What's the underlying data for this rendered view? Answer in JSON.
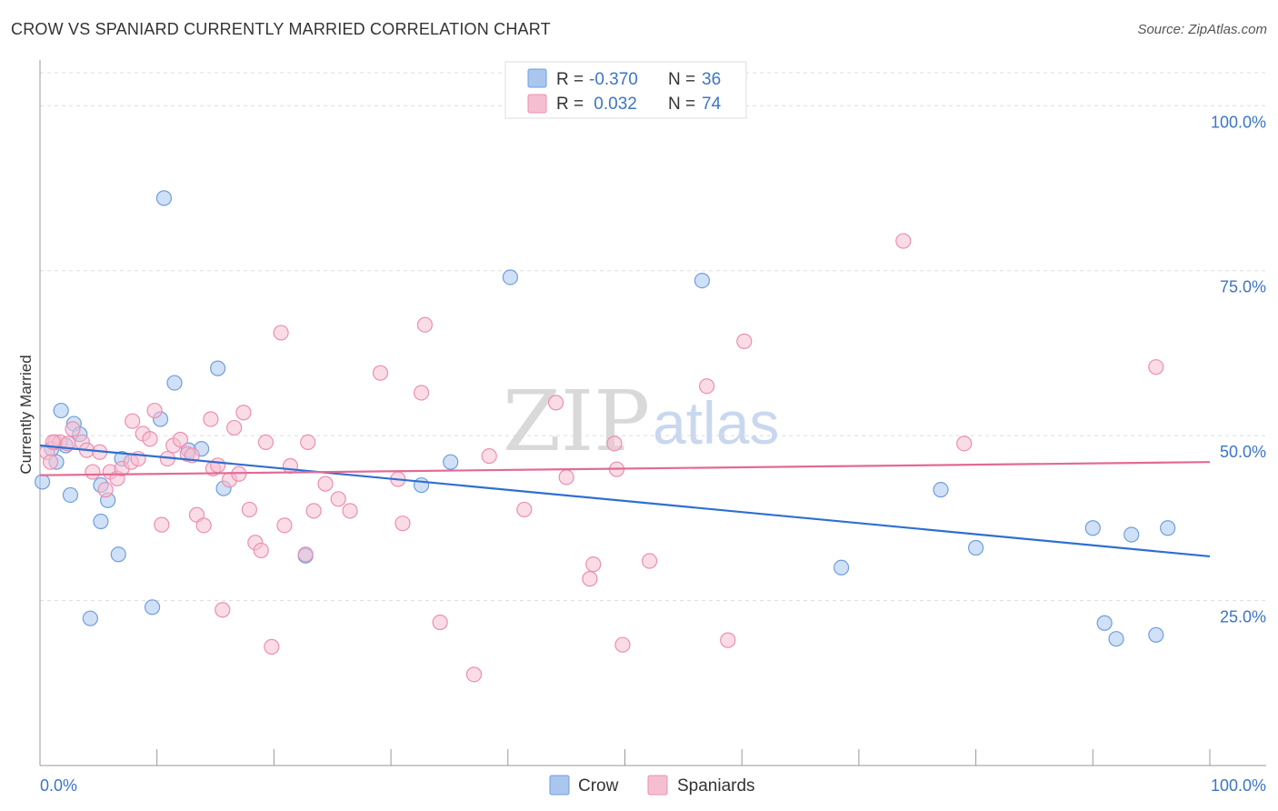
{
  "header": {
    "title": "CROW VS SPANIARD CURRENTLY MARRIED CORRELATION CHART",
    "source": "Source: ZipAtlas.com"
  },
  "watermark": {
    "zip": "ZIP",
    "atlas": "atlas"
  },
  "legend": {
    "rows": [
      {
        "r_label": "R =",
        "r_value": "-0.370",
        "n_label": "N =",
        "n_value": "36",
        "color": "#aac6ef",
        "stroke": "#6f9fdd"
      },
      {
        "r_label": "R =",
        "r_value": " 0.032",
        "n_label": "N =",
        "n_value": "74",
        "color": "#f6bfd1",
        "stroke": "#ec8fb0"
      }
    ]
  },
  "bottom_legend": {
    "crow": "Crow",
    "spaniards": "Spaniards"
  },
  "chart_data": {
    "type": "scatter",
    "title": "CROW VS SPANIARD CURRENTLY MARRIED CORRELATION CHART",
    "xlabel": "",
    "ylabel": "Currently Married",
    "xlim": [
      0,
      100
    ],
    "ylim": [
      0,
      105
    ],
    "x_tick_labels": [
      "0.0%",
      "100.0%"
    ],
    "y_ticks": [
      25,
      50,
      75,
      100
    ],
    "y_tick_labels": [
      "25.0%",
      "50.0%",
      "75.0%",
      "100.0%"
    ],
    "grid": true,
    "legend_position": "top-center",
    "series": [
      {
        "name": "Crow",
        "color": "#aac6ef",
        "stroke": "#6f9fdd",
        "trend": {
          "x": [
            0,
            100
          ],
          "y": [
            48.5,
            31.7
          ],
          "color": "#2f6fd0"
        },
        "points": [
          [
            0.2,
            43.0
          ],
          [
            1.0,
            48.0
          ],
          [
            1.4,
            46.0
          ],
          [
            1.8,
            53.8
          ],
          [
            2.2,
            48.5
          ],
          [
            2.6,
            41.0
          ],
          [
            2.9,
            51.8
          ],
          [
            3.4,
            50.2
          ],
          [
            4.3,
            22.3
          ],
          [
            5.2,
            37.0
          ],
          [
            5.2,
            42.5
          ],
          [
            5.8,
            40.2
          ],
          [
            6.7,
            32.0
          ],
          [
            7.0,
            46.5
          ],
          [
            9.6,
            24.0
          ],
          [
            10.3,
            52.5
          ],
          [
            10.6,
            86.0
          ],
          [
            11.5,
            58.0
          ],
          [
            12.7,
            47.8
          ],
          [
            13.8,
            48.0
          ],
          [
            15.2,
            60.2
          ],
          [
            15.7,
            42.0
          ],
          [
            22.7,
            31.8
          ],
          [
            32.6,
            42.5
          ],
          [
            35.1,
            46.0
          ],
          [
            40.2,
            74.0
          ],
          [
            56.6,
            73.5
          ],
          [
            68.5,
            30.0
          ],
          [
            77.0,
            41.8
          ],
          [
            80.0,
            33.0
          ],
          [
            90.0,
            36.0
          ],
          [
            91.0,
            21.6
          ],
          [
            92.0,
            19.2
          ],
          [
            93.3,
            35.0
          ],
          [
            95.4,
            19.8
          ],
          [
            96.4,
            36.0
          ]
        ]
      },
      {
        "name": "Spaniards",
        "color": "#f6bfd1",
        "stroke": "#ec8fb0",
        "trend": {
          "x": [
            0,
            100
          ],
          "y": [
            44.0,
            46.0
          ],
          "color": "#e26a96"
        },
        "points": [
          [
            0.6,
            47.5
          ],
          [
            0.9,
            46.0
          ],
          [
            1.3,
            49.0
          ],
          [
            1.7,
            49.0
          ],
          [
            2.4,
            48.8
          ],
          [
            2.8,
            51.0
          ],
          [
            3.6,
            49.0
          ],
          [
            4.0,
            47.8
          ],
          [
            4.5,
            44.5
          ],
          [
            5.1,
            47.5
          ],
          [
            5.6,
            41.8
          ],
          [
            6.0,
            44.5
          ],
          [
            6.6,
            43.5
          ],
          [
            7.0,
            45.0
          ],
          [
            7.8,
            46.0
          ],
          [
            7.9,
            52.2
          ],
          [
            8.4,
            46.5
          ],
          [
            8.8,
            50.3
          ],
          [
            9.4,
            49.5
          ],
          [
            9.8,
            53.8
          ],
          [
            10.4,
            36.5
          ],
          [
            10.9,
            46.5
          ],
          [
            11.4,
            48.5
          ],
          [
            12.0,
            49.4
          ],
          [
            12.6,
            47.2
          ],
          [
            13.0,
            47.0
          ],
          [
            13.4,
            38.0
          ],
          [
            14.0,
            36.4
          ],
          [
            14.6,
            52.5
          ],
          [
            14.8,
            45.0
          ],
          [
            15.2,
            45.5
          ],
          [
            15.6,
            23.6
          ],
          [
            16.2,
            43.3
          ],
          [
            16.6,
            51.2
          ],
          [
            17.0,
            44.2
          ],
          [
            17.4,
            53.5
          ],
          [
            17.9,
            38.8
          ],
          [
            18.4,
            33.8
          ],
          [
            18.9,
            32.6
          ],
          [
            19.3,
            49.0
          ],
          [
            19.8,
            18.0
          ],
          [
            20.6,
            65.6
          ],
          [
            20.9,
            36.4
          ],
          [
            21.4,
            45.4
          ],
          [
            22.7,
            32.0
          ],
          [
            22.9,
            49.0
          ],
          [
            23.4,
            38.6
          ],
          [
            24.4,
            42.7
          ],
          [
            25.5,
            40.4
          ],
          [
            26.5,
            38.6
          ],
          [
            29.1,
            59.5
          ],
          [
            30.6,
            43.4
          ],
          [
            31.0,
            36.7
          ],
          [
            32.6,
            56.5
          ],
          [
            32.9,
            66.8
          ],
          [
            34.2,
            21.7
          ],
          [
            37.1,
            13.8
          ],
          [
            38.4,
            46.9
          ],
          [
            41.4,
            38.8
          ],
          [
            44.1,
            55.0
          ],
          [
            45.0,
            43.7
          ],
          [
            47.0,
            28.3
          ],
          [
            47.3,
            30.5
          ],
          [
            49.1,
            48.8
          ],
          [
            49.3,
            44.9
          ],
          [
            49.8,
            18.3
          ],
          [
            52.1,
            31.0
          ],
          [
            57.0,
            57.5
          ],
          [
            58.8,
            19.0
          ],
          [
            60.2,
            64.3
          ],
          [
            73.8,
            79.5
          ],
          [
            79.0,
            48.8
          ],
          [
            95.4,
            60.4
          ],
          [
            1.1,
            49.0
          ]
        ]
      }
    ]
  }
}
